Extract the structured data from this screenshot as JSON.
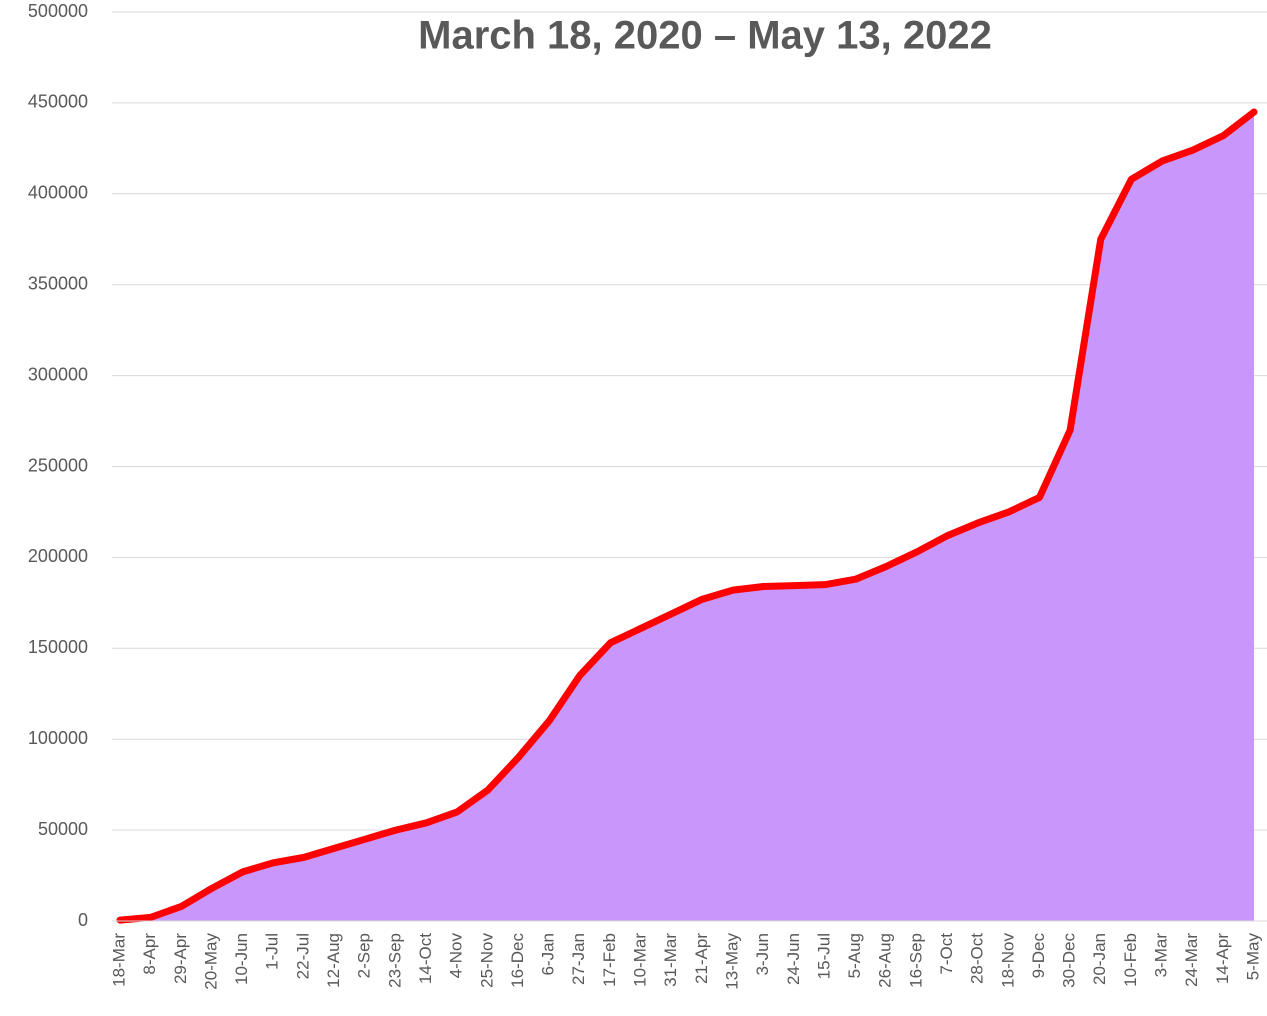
{
  "chart_data": {
    "type": "area",
    "title": "March 18, 2020 – May 13, 2022",
    "categories": [
      "18-Mar",
      "8-Apr",
      "29-Apr",
      "20-May",
      "10-Jun",
      "1-Jul",
      "22-Jul",
      "12-Aug",
      "2-Sep",
      "23-Sep",
      "14-Oct",
      "4-Nov",
      "25-Nov",
      "16-Dec",
      "6-Jan",
      "27-Jan",
      "17-Feb",
      "10-Mar",
      "31-Mar",
      "21-Apr",
      "13-May",
      "3-Jun",
      "24-Jun",
      "15-Jul",
      "5-Aug",
      "26-Aug",
      "16-Sep",
      "7-Oct",
      "28-Oct",
      "18-Nov",
      "9-Dec",
      "30-Dec",
      "20-Jan",
      "10-Feb",
      "3-Mar",
      "24-Mar",
      "14-Apr",
      "5-May"
    ],
    "values": [
      500,
      2000,
      8000,
      18000,
      27000,
      32000,
      35000,
      40000,
      45000,
      50000,
      54000,
      60000,
      72000,
      90000,
      110000,
      135000,
      153000,
      161000,
      169000,
      177000,
      182000,
      184000,
      184500,
      185000,
      188000,
      195000,
      203000,
      212000,
      219000,
      225000,
      233000,
      270000,
      375000,
      408000,
      418000,
      424000,
      432000,
      445000
    ],
    "color": "#c996fc",
    "line_color": "#ff0000",
    "ylim": [
      0,
      500000
    ],
    "yticks": [
      0,
      50000,
      100000,
      150000,
      200000,
      250000,
      300000,
      350000,
      400000,
      450000,
      500000
    ],
    "grid": true
  }
}
